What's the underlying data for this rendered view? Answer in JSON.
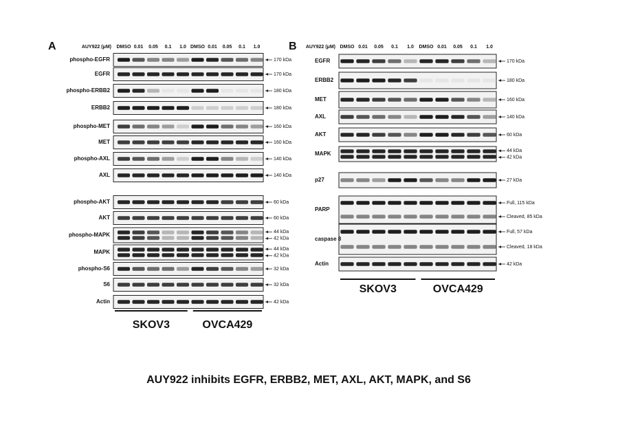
{
  "panels": [
    {
      "label": "A",
      "treatment_label": "AUY922 (μM)",
      "lanes": [
        "DMSO",
        "0.01",
        "0.05",
        "0.1",
        "1.0",
        "DMSO",
        "0.01",
        "0.05",
        "0.1",
        "1.0"
      ],
      "rows": [
        {
          "name": "phospho-EGFR",
          "markers": [
            "170 kDa"
          ]
        },
        {
          "name": "EGFR",
          "markers": [
            "170 kDa"
          ]
        },
        {
          "name": "phospho-ERBB2",
          "markers": [
            "180 kDa"
          ]
        },
        {
          "name": "ERBB2",
          "markers": [
            "180 kDa"
          ]
        },
        {
          "name": "phospho-MET",
          "markers": [
            "160 kDa"
          ]
        },
        {
          "name": "MET",
          "markers": [
            "160 kDa"
          ]
        },
        {
          "name": "phospho-AXL",
          "markers": [
            "140 kDa"
          ]
        },
        {
          "name": "AXL",
          "markers": [
            "140 kDa"
          ]
        },
        {
          "name": "phospho-AKT",
          "markers": [
            "60 kDa"
          ]
        },
        {
          "name": "AKT",
          "markers": [
            "60 kDa"
          ]
        },
        {
          "name": "phospho-MAPK",
          "markers": [
            "44 kDa",
            "42 kDa"
          ]
        },
        {
          "name": "MAPK",
          "markers": [
            "44 kDa",
            "42 kDa"
          ]
        },
        {
          "name": "phospho-S6",
          "markers": [
            "32 kDa"
          ]
        },
        {
          "name": "S6",
          "markers": [
            "32 kDa"
          ]
        },
        {
          "name": "Actin",
          "markers": [
            "42 kDa"
          ]
        }
      ],
      "cell_lines": [
        "SKOV3",
        "OVCA429"
      ]
    },
    {
      "label": "B",
      "treatment_label": "AUY922 (μM)",
      "lanes": [
        "DMSO",
        "0.01",
        "0.05",
        "0.1",
        "1.0",
        "DMSO",
        "0.01",
        "0.05",
        "0.1",
        "1.0"
      ],
      "rows": [
        {
          "name": "EGFR",
          "markers": [
            "170 kDa"
          ]
        },
        {
          "name": "ERBB2",
          "markers": [
            "180 kDa"
          ]
        },
        {
          "name": "MET",
          "markers": [
            "160 kDa"
          ]
        },
        {
          "name": "AXL",
          "markers": [
            "140 kDa"
          ]
        },
        {
          "name": "AKT",
          "markers": [
            "60 kDa"
          ]
        },
        {
          "name": "MAPK",
          "markers": [
            "44 kDa",
            "42 kDa"
          ]
        },
        {
          "name": "p27",
          "markers": [
            "27 kDa"
          ]
        },
        {
          "name": "PARP",
          "markers": [
            "Full, 115 kDa",
            "Cleaved, 85 kDa"
          ]
        },
        {
          "name": "caspase 8",
          "markers": [
            "Full, 57 kDa",
            "Cleaved, 18 kDa"
          ]
        },
        {
          "name": "Actin",
          "markers": [
            "42 kDa"
          ]
        }
      ],
      "cell_lines": [
        "SKOV3",
        "OVCA429"
      ]
    }
  ],
  "caption": "AUY922 inhibits EGFR, ERBB2, MET, AXL, AKT, MAPK, and S6"
}
